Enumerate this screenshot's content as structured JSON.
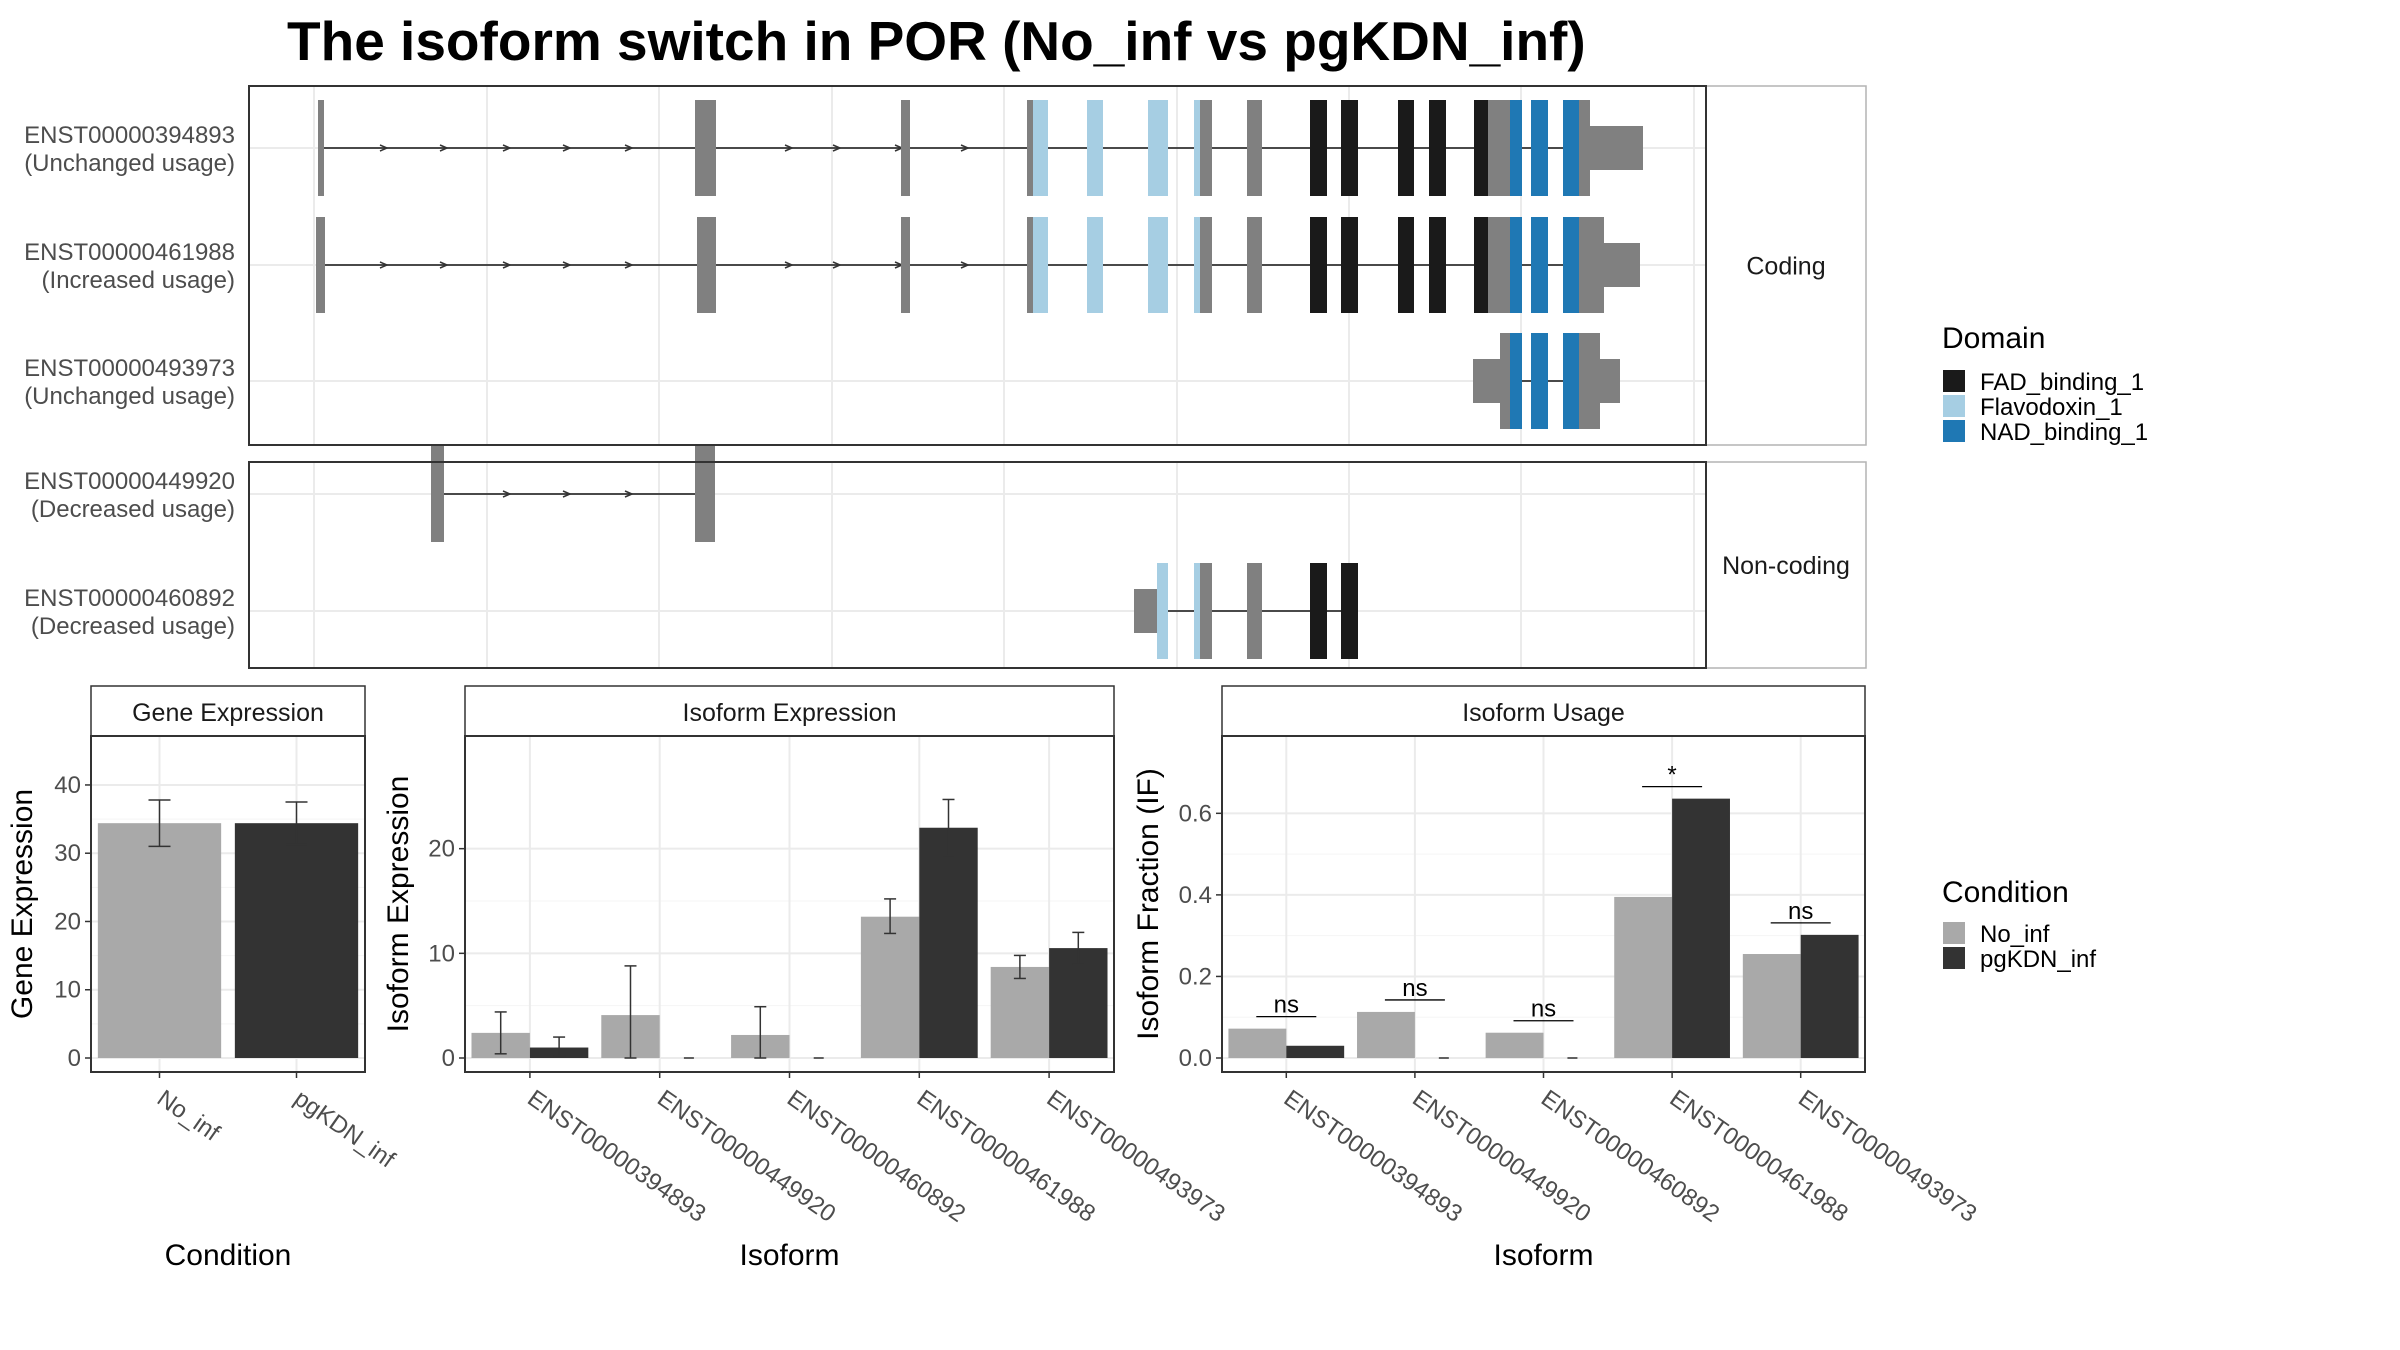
{
  "title": "The isoform switch in POR (No_inf vs pgKDN_inf)",
  "colors": {
    "FAD_binding_1": "#1a1a1a",
    "Flavodoxin_1": "#a6cee3",
    "NAD_binding_1": "#1f78b4",
    "noncoding_exon": "#808080",
    "No_inf": "#a9a9a9",
    "pgKDN_inf": "#333333"
  },
  "gene_structure": {
    "groups": [
      {
        "name": "Coding",
        "transcripts": [
          {
            "id": "ENST00000394893",
            "usage": "(Unchanged usage)"
          },
          {
            "id": "ENST00000461988",
            "usage": "(Increased usage)"
          },
          {
            "id": "ENST00000493973",
            "usage": "(Unchanged usage)"
          }
        ]
      },
      {
        "name": "Non-coding",
        "transcripts": [
          {
            "id": "ENST00000449920",
            "usage": "(Decreased usage)"
          },
          {
            "id": "ENST00000460892",
            "usage": "(Decreased usage)"
          }
        ]
      }
    ]
  },
  "legend_domain": {
    "title": "Domain",
    "items": [
      "FAD_binding_1",
      "Flavodoxin_1",
      "NAD_binding_1"
    ]
  },
  "legend_condition": {
    "title": "Condition",
    "items": [
      "No_inf",
      "pgKDN_inf"
    ]
  },
  "chart_data": [
    {
      "type": "bar",
      "strip": "Gene Expression",
      "xlabel": "Condition",
      "ylabel": "Gene Expression",
      "ylim": [
        0,
        46
      ],
      "yticks": [
        0,
        10,
        20,
        30,
        40
      ],
      "categories": [
        "No_inf",
        "pgKDN_inf"
      ],
      "values": [
        34.4,
        34.4
      ],
      "errors": [
        [
          31.0,
          37.8
        ],
        [
          31.3,
          37.5
        ]
      ]
    },
    {
      "type": "bar",
      "strip": "Isoform Expression",
      "xlabel": "Isoform",
      "ylabel": "Isoform Expression",
      "ylim": [
        0,
        30
      ],
      "yticks": [
        0,
        10,
        20
      ],
      "categories": [
        "ENST00000394893",
        "ENST00000449920",
        "ENST00000460892",
        "ENST00000461988",
        "ENST00000493973"
      ],
      "series": [
        {
          "name": "No_inf",
          "values": [
            2.4,
            4.1,
            2.2,
            13.5,
            8.7
          ],
          "errors": [
            [
              0.4,
              4.4
            ],
            [
              0.0,
              8.8
            ],
            [
              0.0,
              4.9
            ],
            [
              11.9,
              15.2
            ],
            [
              7.6,
              9.8
            ]
          ]
        },
        {
          "name": "pgKDN_inf",
          "values": [
            1.0,
            0.0,
            0.0,
            22.0,
            10.5
          ],
          "errors": [
            [
              0.2,
              2.0
            ],
            [
              0.0,
              0.0
            ],
            [
              0.0,
              0.0
            ],
            [
              19.3,
              24.7
            ],
            [
              9.0,
              12.0
            ]
          ]
        }
      ]
    },
    {
      "type": "bar",
      "strip": "Isoform Usage",
      "xlabel": "Isoform",
      "ylabel": "Isoform Fraction (IF)",
      "ylim": [
        0,
        0.77
      ],
      "yticks": [
        "0.0",
        "0.2",
        "0.4",
        "0.6"
      ],
      "categories": [
        "ENST00000394893",
        "ENST00000449920",
        "ENST00000460892",
        "ENST00000461988",
        "ENST00000493973"
      ],
      "series": [
        {
          "name": "No_inf",
          "values": [
            0.072,
            0.113,
            0.062,
            0.395,
            0.255
          ]
        },
        {
          "name": "pgKDN_inf",
          "values": [
            0.03,
            0.0,
            0.0,
            0.636,
            0.302
          ]
        }
      ],
      "significance": [
        "ns",
        "ns",
        "ns",
        "*",
        "ns"
      ]
    }
  ]
}
